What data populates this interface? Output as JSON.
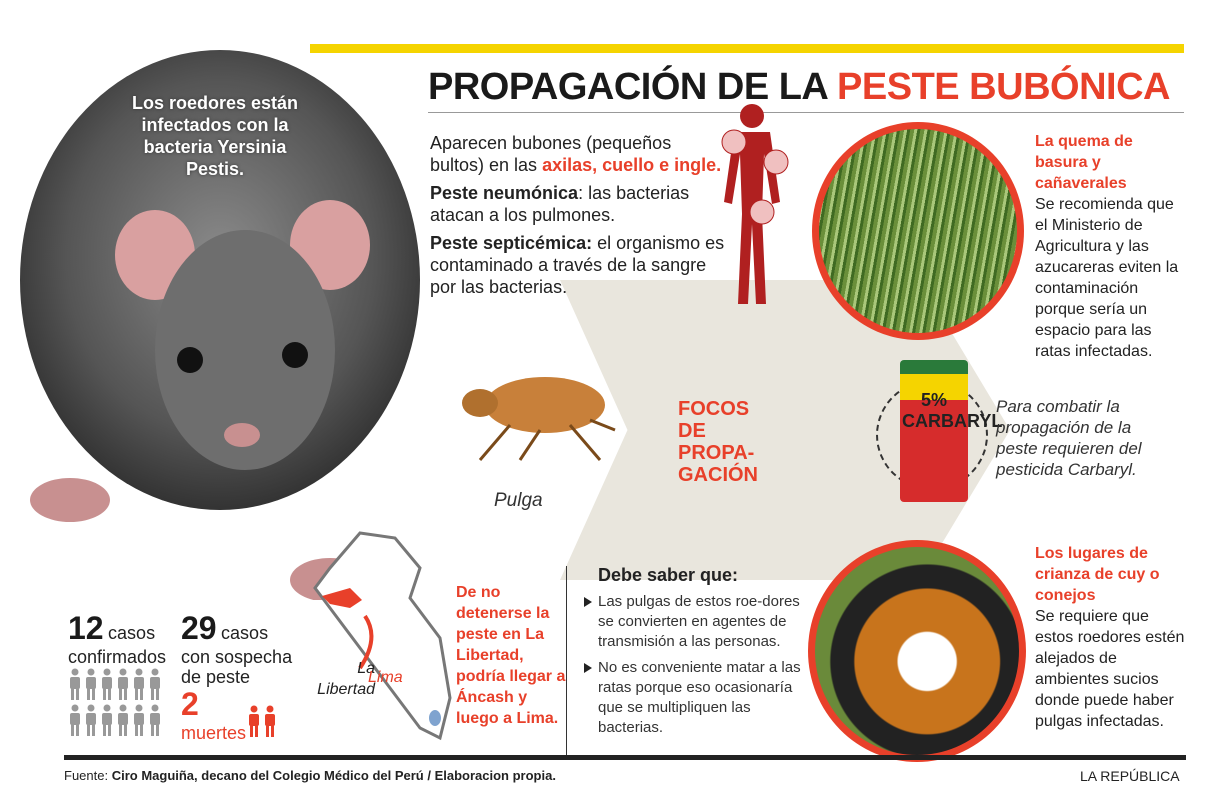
{
  "title": {
    "part1": "PROPAGACIÓN DE LA ",
    "part2": "PESTE BUBÓNICA"
  },
  "rat_caption": "Los roedores están infectados con la bacteria Yersinia Pestis.",
  "symptoms": {
    "p1_a": "Aparecen bubones (pequeños bultos) en las ",
    "p1_b": "axilas, cuello e ingle.",
    "p2_a": "Peste neumónica",
    "p2_b": ": las bacterias atacan a los pulmones.",
    "p3_a": "Peste septicémica:",
    "p3_b": " el organismo es contaminado a través de la sangre por las bacterias."
  },
  "focos": [
    "FOCOS",
    "DE",
    "PROPA-",
    "GACIÓN"
  ],
  "pulga": "Pulga",
  "quema": {
    "heading": "La quema de basura y cañaverales",
    "text": "Se recomienda que el Ministerio de Agricultura y las azucareras eviten la contaminación porque sería un espacio para las ratas infectadas."
  },
  "pesticide": {
    "bag_label": "5% CARBARYL",
    "text": "Para combatir la propagación de la peste requieren del pesticida Carbaryl."
  },
  "cuy": {
    "heading": "Los lugares de crianza de cuy o conejos",
    "text": "Se requiere que estos roedores estén alejados de ambientes sucios donde puede haber pulgas infectadas."
  },
  "debe": {
    "heading": "Debe saber que:",
    "items": [
      "Las pulgas de estos roe-dores se convierten en agentes de transmisión a las personas.",
      "No es conveniente matar a las ratas porque eso ocasionaría que se multipliquen las bacterias."
    ]
  },
  "map": {
    "label_region": "La Libertad",
    "label_lima": "Lima",
    "warning": "De no detenerse la peste en La Libertad, podría llegar a Áncash y luego a Lima."
  },
  "stats": {
    "confirmed_num": "12",
    "confirmed_label1": "casos",
    "confirmed_label2": "confirmados",
    "suspect_num": "29",
    "suspect_label1": "casos",
    "suspect_label2": "con sospecha de peste",
    "deaths_num": "2",
    "deaths_label": "muertes"
  },
  "footer": {
    "fuente_label": "Fuente: ",
    "fuente_text": "Ciro Maguiña, decano del Colegio Médico del Perú / Elaboracion propia.",
    "brand": "LA REPÚBLICA"
  },
  "colors": {
    "accent": "#e8402a",
    "yellow": "#f5d400"
  }
}
